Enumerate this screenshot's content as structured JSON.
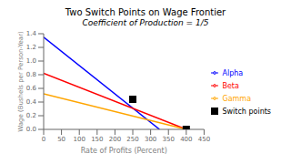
{
  "chart_data": {
    "type": "line",
    "title": "Two Switch Points on Wage Frontier",
    "subtitle": "Coefficient of Production = 1/5",
    "xlabel": "Rate of Profits (Percent)",
    "ylabel": "Wage (Bushels per Person-Year)",
    "xlim": [
      0,
      450
    ],
    "ylim": [
      0,
      1.4
    ],
    "xticks": [
      0,
      50,
      100,
      150,
      200,
      250,
      300,
      350,
      400,
      450
    ],
    "yticks": [
      {
        "value": 0,
        "label": "0.0"
      },
      0.2,
      0.4,
      0.6,
      0.8,
      {
        "value": 1.0,
        "label": "1.0"
      },
      1.2,
      1.4
    ],
    "legend": "right",
    "series": [
      {
        "name": "Alpha",
        "color": "blue",
        "x": [
          0,
          325
        ],
        "values": [
          1.35,
          0.0
        ]
      },
      {
        "name": "Beta",
        "color": "red",
        "x": [
          0,
          400
        ],
        "values": [
          0.82,
          0.0
        ]
      },
      {
        "name": "Gamma",
        "color": "#FFA500",
        "x": [
          0,
          400
        ],
        "values": [
          0.52,
          0.0
        ]
      },
      {
        "name": "Switch points",
        "type": "scatter",
        "color": "black",
        "marker": "square",
        "x": [
          250,
          400
        ],
        "values": [
          0.44,
          0.0
        ]
      }
    ]
  }
}
